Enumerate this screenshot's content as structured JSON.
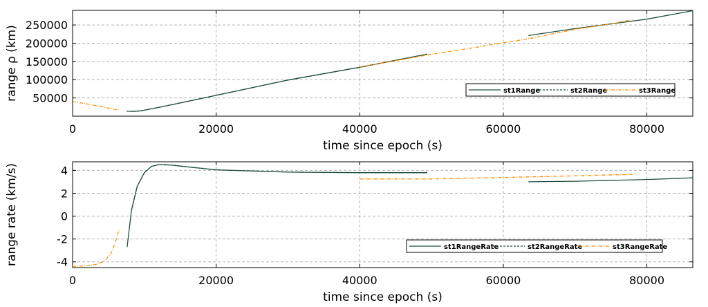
{
  "chart_data": [
    {
      "type": "line",
      "xlabel": "time since epoch (s)",
      "ylabel": "range ρ (km)",
      "xlim": [
        0,
        86400
      ],
      "ylim": [
        0,
        290000
      ],
      "xticks": [
        0,
        20000,
        40000,
        60000,
        80000
      ],
      "yticks": [
        50000,
        100000,
        150000,
        200000,
        250000
      ],
      "grid": true,
      "legend": "inside-bottom-right",
      "series": [
        {
          "name": "st1Range",
          "color": "#1f4e3d",
          "style": "solid",
          "segments": [
            [
              [
                7500,
                13500
              ],
              [
                8500,
                13000
              ],
              [
                9500,
                14500
              ],
              [
                11000,
                20000
              ],
              [
                14000,
                32000
              ],
              [
                20000,
                57000
              ],
              [
                30000,
                99000
              ],
              [
                40000,
                134000
              ],
              [
                49400,
                170000
              ]
            ],
            [
              [
                63500,
                221000
              ],
              [
                70000,
                240000
              ],
              [
                80000,
                266000
              ],
              [
                86400,
                289000
              ]
            ]
          ]
        },
        {
          "name": "st2Range",
          "color": "#1f4e3d",
          "style": "dashed",
          "segments": [
            [
              [
                8000,
                13200
              ],
              [
                9500,
                14500
              ],
              [
                12000,
                24000
              ],
              [
                20000,
                57000
              ],
              [
                30000,
                99000
              ],
              [
                40000,
                134000
              ],
              [
                49400,
                170000
              ]
            ]
          ]
        },
        {
          "name": "st3Range",
          "color": "#ff8c00",
          "style": "dashdot",
          "segments": [
            [
              [
                0,
                40000
              ],
              [
                2000,
                33500
              ],
              [
                4000,
                26000
              ],
              [
                5500,
                20000
              ],
              [
                6600,
                16500
              ]
            ],
            [
              [
                40000,
                135000
              ],
              [
                45000,
                152000
              ],
              [
                50000,
                170000
              ],
              [
                55000,
                185000
              ],
              [
                60000,
                201000
              ],
              [
                64000,
                214000
              ],
              [
                70000,
                238000
              ],
              [
                75000,
                253000
              ],
              [
                78000,
                265000
              ]
            ]
          ]
        }
      ]
    },
    {
      "type": "line",
      "xlabel": "time since epoch (s)",
      "ylabel": "range rate (km/s)",
      "xlim": [
        0,
        86400
      ],
      "ylim": [
        -4.5,
        4.75
      ],
      "xticks": [
        0,
        20000,
        40000,
        60000,
        80000
      ],
      "yticks": [
        -4,
        -2,
        0,
        2,
        4
      ],
      "grid": true,
      "legend": "inside-bottom-right",
      "series": [
        {
          "name": "st1RangeRate",
          "color": "#1f4e3d",
          "style": "solid",
          "segments": [
            [
              [
                7600,
                -2.7
              ],
              [
                8200,
                0.5
              ],
              [
                9000,
                2.6
              ],
              [
                10000,
                3.8
              ],
              [
                11000,
                4.35
              ],
              [
                12000,
                4.5
              ],
              [
                13000,
                4.5
              ],
              [
                14000,
                4.45
              ],
              [
                16000,
                4.3
              ],
              [
                20000,
                4.05
              ],
              [
                30000,
                3.85
              ],
              [
                40000,
                3.8
              ],
              [
                49400,
                3.8
              ]
            ],
            [
              [
                63500,
                3.0
              ],
              [
                70000,
                3.05
              ],
              [
                80000,
                3.2
              ],
              [
                86400,
                3.35
              ]
            ]
          ]
        },
        {
          "name": "st2RangeRate",
          "color": "#1f4e3d",
          "style": "dashed",
          "segments": [
            [
              [
                8200,
                0.5
              ],
              [
                9000,
                2.6
              ],
              [
                10000,
                3.8
              ],
              [
                11000,
                4.35
              ],
              [
                12000,
                4.5
              ],
              [
                14000,
                4.45
              ],
              [
                20000,
                4.05
              ],
              [
                30000,
                3.85
              ],
              [
                40000,
                3.8
              ],
              [
                49400,
                3.8
              ]
            ]
          ]
        },
        {
          "name": "st3RangeRate",
          "color": "#ff8c00",
          "style": "dashdot",
          "segments": [
            [
              [
                0,
                -4.4
              ],
              [
                2000,
                -4.35
              ],
              [
                3500,
                -4.2
              ],
              [
                4500,
                -3.9
              ],
              [
                5300,
                -3.3
              ],
              [
                5900,
                -2.4
              ],
              [
                6500,
                -1.1
              ]
            ],
            [
              [
                40000,
                3.25
              ],
              [
                50000,
                3.25
              ],
              [
                60000,
                3.38
              ],
              [
                70000,
                3.52
              ],
              [
                78000,
                3.65
              ]
            ]
          ]
        }
      ]
    }
  ]
}
